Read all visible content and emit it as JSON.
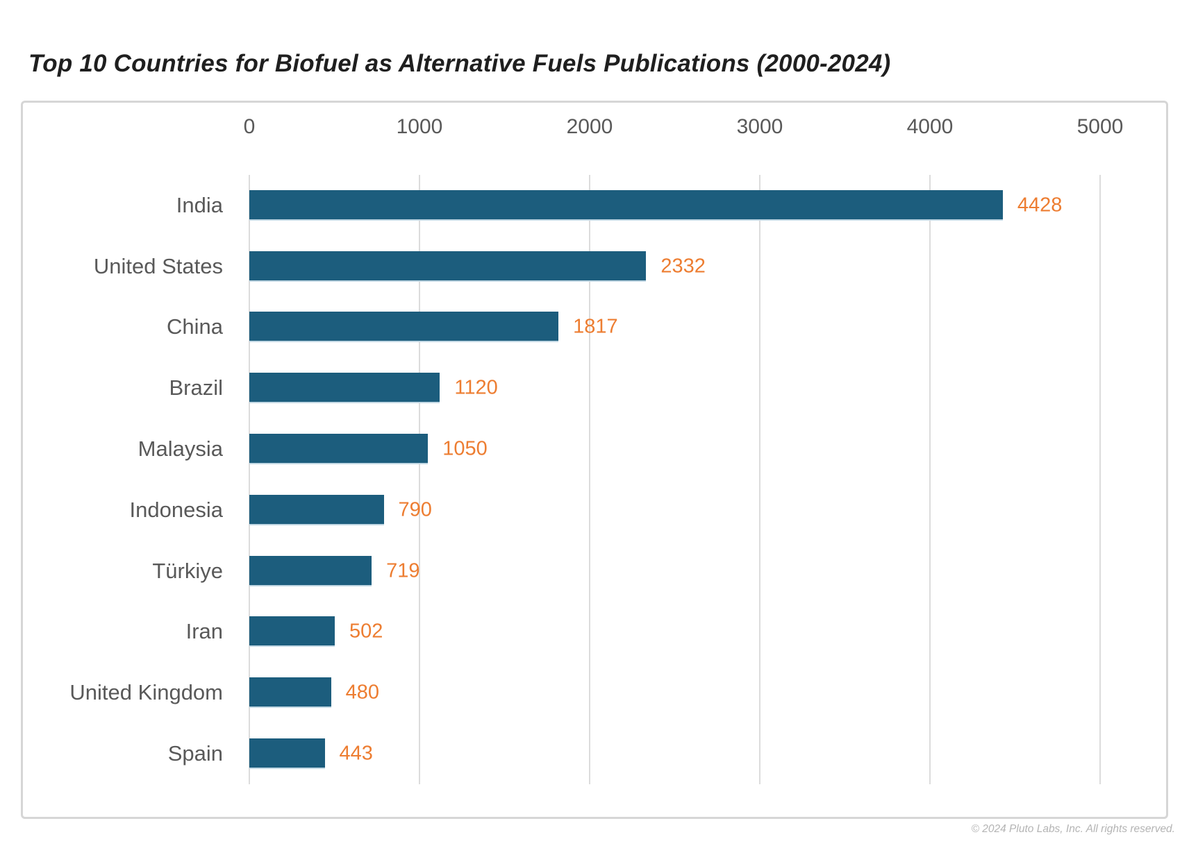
{
  "title": "Top 10 Countries for Biofuel as Alternative Fuels Publications (2000-2024)",
  "footer": {
    "copyright": "© 2024 Pluto Labs, Inc. All rights reserved."
  },
  "colors": {
    "bar": "#1C5D7D",
    "value_label": "#ED7D31",
    "category_label": "#595959",
    "axis_label": "#595959",
    "gridline": "#DCDCDC",
    "card_border": "#D6D6D6",
    "title": "#1F1F1F",
    "copyright": "#B4B4B4"
  },
  "chart_data": {
    "type": "bar",
    "orientation": "horizontal",
    "title": "Top 10 Countries for Biofuel as Alternative Fuels Publications (2000-2024)",
    "categories": [
      "India",
      "United States",
      "China",
      "Brazil",
      "Malaysia",
      "Indonesia",
      "Türkiye",
      "Iran",
      "United Kingdom",
      "Spain"
    ],
    "values": [
      4428,
      2332,
      1817,
      1120,
      1050,
      790,
      719,
      502,
      480,
      443
    ],
    "xlabel": "",
    "ylabel": "",
    "xlim": [
      0,
      5000
    ],
    "x_ticks": [
      0,
      1000,
      2000,
      3000,
      4000,
      5000
    ],
    "grid": "vertical-only",
    "legend": "none",
    "value_labels": true,
    "axis_position": "top"
  }
}
